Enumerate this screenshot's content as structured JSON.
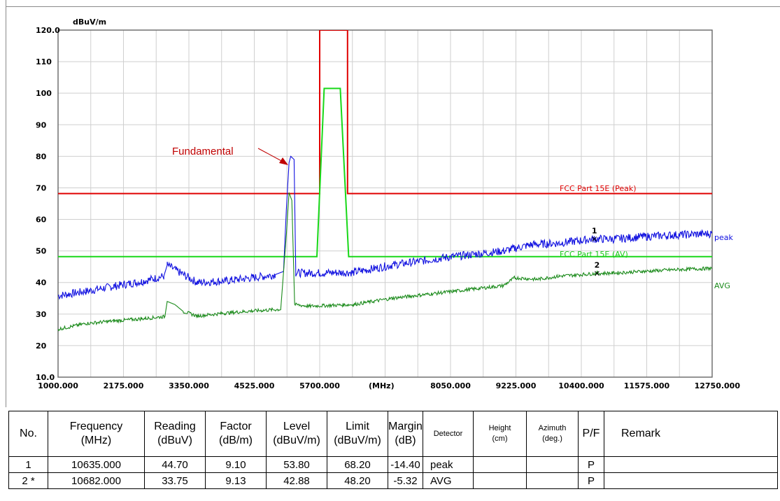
{
  "chart_data": {
    "type": "line",
    "ylabel_unit": "dBuV/m",
    "xlabel_unit": "(MHz)",
    "ylim": [
      10.0,
      120.0
    ],
    "xlim": [
      1000.0,
      12750.0
    ],
    "y_ticks": [
      "120.0",
      "110",
      "100",
      "90",
      "80",
      "70",
      "60",
      "50",
      "40",
      "30",
      "20",
      "10.0"
    ],
    "x_ticks": [
      "1000.000",
      "2175.000",
      "3350.000",
      "4525.000",
      "5700.000",
      "8050.000",
      "9225.000",
      "10400.000",
      "11575.000",
      "12750.000"
    ],
    "grid": true,
    "annotation": "Fundamental",
    "series": [
      {
        "name": "FCC Part 15E  (Peak)",
        "color": "#e00000",
        "points": [
          [
            1000,
            68.2
          ],
          [
            5700,
            68.2
          ],
          [
            5700,
            120.0
          ],
          [
            6200,
            120.0
          ],
          [
            6200,
            68.2
          ],
          [
            12750,
            68.2
          ]
        ]
      },
      {
        "name": "FCC Part 15E  (AV)",
        "color": "#18d818",
        "points": [
          [
            1000,
            48.2
          ],
          [
            5650,
            48.2
          ],
          [
            5780,
            101.5
          ],
          [
            6070,
            101.5
          ],
          [
            6220,
            48.2
          ],
          [
            12750,
            48.2
          ]
        ]
      },
      {
        "name": "peak",
        "color": "#1010e0",
        "points": [
          [
            1000,
            35.8
          ],
          [
            1500,
            37.2
          ],
          [
            2000,
            38.8
          ],
          [
            2500,
            40.3
          ],
          [
            2900,
            42.0
          ],
          [
            2960,
            45.5
          ],
          [
            3200,
            43.0
          ],
          [
            3500,
            40.0
          ],
          [
            4000,
            40.5
          ],
          [
            4500,
            41.5
          ],
          [
            4900,
            42.5
          ],
          [
            5050,
            43.5
          ],
          [
            5100,
            63.0
          ],
          [
            5150,
            78.0
          ],
          [
            5180,
            80.0
          ],
          [
            5240,
            79.0
          ],
          [
            5270,
            43.0
          ],
          [
            5500,
            43.0
          ],
          [
            6300,
            43.2
          ],
          [
            7000,
            45.5
          ],
          [
            8000,
            48.0
          ],
          [
            9000,
            50.0
          ],
          [
            9500,
            52.0
          ],
          [
            10000,
            52.5
          ],
          [
            10635,
            53.8
          ],
          [
            11000,
            53.8
          ],
          [
            11500,
            54.5
          ],
          [
            12000,
            55.0
          ],
          [
            12750,
            55.5
          ]
        ]
      },
      {
        "name": "AVG",
        "color": "#1a8a1a",
        "points": [
          [
            1000,
            25.2
          ],
          [
            1500,
            27.0
          ],
          [
            2000,
            27.8
          ],
          [
            2500,
            28.5
          ],
          [
            2920,
            29.2
          ],
          [
            2960,
            34.0
          ],
          [
            3100,
            33.0
          ],
          [
            3250,
            30.8
          ],
          [
            3500,
            29.4
          ],
          [
            4000,
            30.3
          ],
          [
            4500,
            31.0
          ],
          [
            5000,
            31.5
          ],
          [
            5100,
            55.0
          ],
          [
            5150,
            68.5
          ],
          [
            5200,
            66.0
          ],
          [
            5250,
            33.0
          ],
          [
            5500,
            32.5
          ],
          [
            6300,
            33.0
          ],
          [
            7000,
            35.0
          ],
          [
            8000,
            37.0
          ],
          [
            9000,
            39.0
          ],
          [
            9200,
            41.5
          ],
          [
            9600,
            41.0
          ],
          [
            10000,
            42.0
          ],
          [
            10682,
            42.88
          ],
          [
            11000,
            43.0
          ],
          [
            11500,
            43.5
          ],
          [
            12000,
            44.0
          ],
          [
            12750,
            44.5
          ]
        ]
      }
    ],
    "markers": [
      {
        "label": "1",
        "x": 10635.0,
        "y": 53.8
      },
      {
        "label": "2",
        "x": 10682.0,
        "y": 42.88
      }
    ]
  },
  "table": {
    "headers": [
      {
        "line1": "No.",
        "line2": ""
      },
      {
        "line1": "Frequency",
        "line2": "(MHz)"
      },
      {
        "line1": "Reading",
        "line2": "(dBuV)"
      },
      {
        "line1": "Factor",
        "line2": "(dB/m)"
      },
      {
        "line1": "Level",
        "line2": "(dBuV/m)"
      },
      {
        "line1": "Limit",
        "line2": "(dBuV/m)"
      },
      {
        "line1": "Margin",
        "line2": "(dB)"
      },
      {
        "line1": "Detector",
        "line2": ""
      },
      {
        "line1": "Height",
        "line2": "(cm)"
      },
      {
        "line1": "Azimuth",
        "line2": "(deg.)"
      },
      {
        "line1": "P/F",
        "line2": ""
      },
      {
        "line1": "Remark",
        "line2": ""
      }
    ],
    "rows": [
      [
        "1",
        "10635.000",
        "44.70",
        "9.10",
        "53.80",
        "68.20",
        "-14.40",
        "peak",
        "",
        "",
        "P",
        ""
      ],
      [
        "2 *",
        "10682.000",
        "33.75",
        "9.13",
        "42.88",
        "48.20",
        "-5.32",
        "AVG",
        "",
        "",
        "P",
        ""
      ]
    ]
  }
}
